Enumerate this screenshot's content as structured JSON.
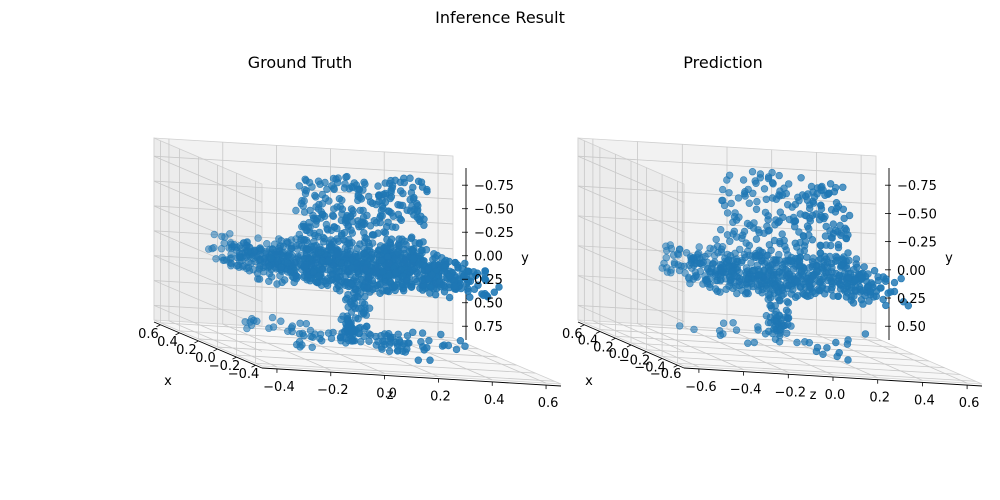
{
  "figure": {
    "title": "Inference Result"
  },
  "chart_data": [
    {
      "type": "scatter",
      "projection": "3d",
      "title": "Ground Truth",
      "xlabel": "x",
      "ylabel": "y",
      "zlabel": "z",
      "marker_color": "#1f77b4",
      "x_ticks": [
        "0.6",
        "0.4",
        "0.2",
        "0.0",
        "−0.2",
        "−0.4"
      ],
      "z_ticks": [
        "−0.4",
        "−0.2",
        "0.0",
        "0.2",
        "0.4",
        "0.6"
      ],
      "y_ticks": [
        "−0.75",
        "−0.50",
        "−0.25",
        "0.00",
        "0.25",
        "0.50",
        "0.75"
      ],
      "xlim": [
        -0.45,
        0.65
      ],
      "zlim": [
        -0.55,
        0.65
      ],
      "ylim": [
        -0.9,
        0.8
      ],
      "y_inverted": true,
      "grid": true,
      "structure": [
        {
          "part": "back",
          "x": [
            -0.15,
            0.25
          ],
          "z": [
            -0.25,
            0.25
          ],
          "y": [
            -0.9,
            -0.1
          ]
        },
        {
          "part": "seat",
          "x": [
            -0.35,
            0.4
          ],
          "z": [
            -0.45,
            0.45
          ],
          "y": [
            -0.15,
            0.1
          ]
        },
        {
          "part": "leg-hub",
          "x": [
            -0.05,
            0.05
          ],
          "z": [
            -0.05,
            0.05
          ],
          "y": [
            0.1,
            0.55
          ]
        },
        {
          "part": "base-spokes",
          "x": [
            -0.4,
            0.4
          ],
          "z": [
            -0.45,
            0.45
          ],
          "y": [
            0.55,
            0.7
          ]
        }
      ]
    },
    {
      "type": "scatter",
      "projection": "3d",
      "title": "Prediction",
      "xlabel": "x",
      "ylabel": "y",
      "zlabel": "z",
      "marker_color": "#1f77b4",
      "x_ticks": [
        "0.6",
        "0.4",
        "0.2",
        "0.0",
        "−0.2",
        "−0.4",
        "−0.6"
      ],
      "z_ticks": [
        "−0.6",
        "−0.4",
        "−0.2",
        "0.0",
        "0.2",
        "0.4",
        "0.6"
      ],
      "y_ticks": [
        "−0.75",
        "−0.50",
        "−0.25",
        "0.00",
        "0.25",
        "0.50"
      ],
      "xlim": [
        -0.65,
        0.65
      ],
      "zlim": [
        -0.65,
        0.65
      ],
      "ylim": [
        -0.9,
        0.6
      ],
      "y_inverted": true,
      "grid": true,
      "structure": [
        {
          "part": "back",
          "x": [
            -0.2,
            0.25
          ],
          "z": [
            -0.3,
            0.25
          ],
          "y": [
            -0.9,
            -0.15
          ]
        },
        {
          "part": "seat",
          "x": [
            -0.35,
            0.4
          ],
          "z": [
            -0.4,
            0.45
          ],
          "y": [
            -0.15,
            0.1
          ]
        },
        {
          "part": "leg-hub",
          "x": [
            -0.05,
            0.05
          ],
          "z": [
            -0.05,
            0.05
          ],
          "y": [
            0.1,
            0.4
          ]
        },
        {
          "part": "base-spokes",
          "x": [
            -0.5,
            0.5
          ],
          "z": [
            -0.5,
            0.5
          ],
          "y": [
            0.4,
            0.55
          ]
        }
      ]
    }
  ]
}
